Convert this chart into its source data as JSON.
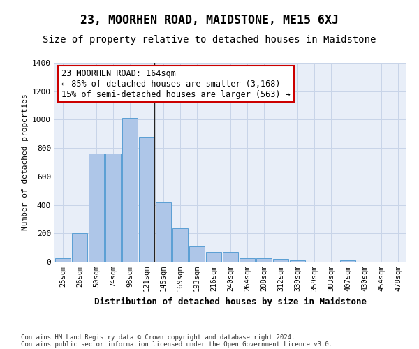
{
  "title": "23, MOORHEN ROAD, MAIDSTONE, ME15 6XJ",
  "subtitle": "Size of property relative to detached houses in Maidstone",
  "xlabel": "Distribution of detached houses by size in Maidstone",
  "ylabel": "Number of detached properties",
  "footnote1": "Contains HM Land Registry data © Crown copyright and database right 2024.",
  "footnote2": "Contains public sector information licensed under the Open Government Licence v3.0.",
  "categories": [
    "25sqm",
    "26sqm",
    "50sqm",
    "74sqm",
    "98sqm",
    "121sqm",
    "145sqm",
    "169sqm",
    "193sqm",
    "216sqm",
    "240sqm",
    "264sqm",
    "288sqm",
    "312sqm",
    "339sqm",
    "359sqm",
    "383sqm",
    "407sqm",
    "430sqm",
    "454sqm",
    "478sqm"
  ],
  "values": [
    25,
    200,
    760,
    760,
    1010,
    880,
    420,
    235,
    110,
    70,
    70,
    25,
    25,
    20,
    10,
    0,
    0,
    10,
    0,
    0,
    0
  ],
  "bar_color": "#aec6e8",
  "bar_edge_color": "#5a9fd4",
  "annotation_title": "23 MOORHEN ROAD: 164sqm",
  "annotation_line1": "← 85% of detached houses are smaller (3,168)",
  "annotation_line2": "15% of semi-detached houses are larger (563) →",
  "annotation_box_facecolor": "#ffffff",
  "annotation_box_edgecolor": "#cc0000",
  "vline_color": "#222222",
  "grid_color": "#c8d4e8",
  "bg_color": "#e8eef8",
  "ylim": [
    0,
    1400
  ],
  "yticks": [
    0,
    200,
    400,
    600,
    800,
    1000,
    1200,
    1400
  ],
  "prop_line_index": 6,
  "title_fontsize": 12,
  "subtitle_fontsize": 10,
  "xlabel_fontsize": 9,
  "ylabel_fontsize": 8,
  "tick_fontsize": 7.5,
  "annotation_fontsize": 8.5,
  "footnote_fontsize": 6.5
}
